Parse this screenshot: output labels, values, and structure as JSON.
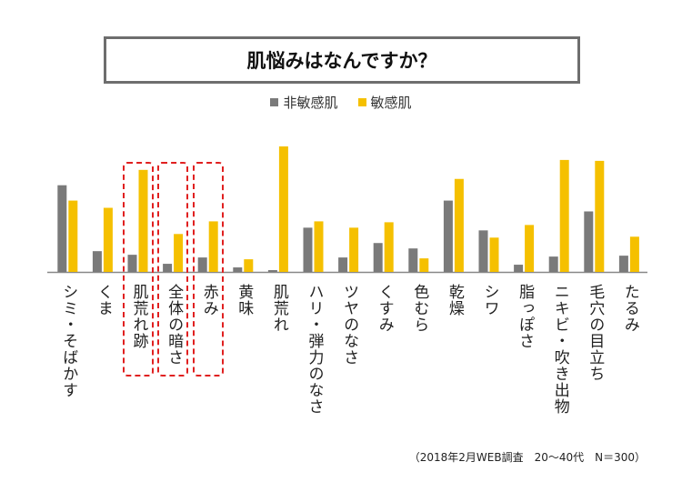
{
  "chart_data": {
    "type": "bar",
    "title": "肌悩みはなんですか？",
    "legend": [
      "非敏感肌",
      "敏感肌"
    ],
    "legend_position": "top",
    "categories": [
      "シミ・そばかす",
      "くま",
      "肌荒れ跡",
      "全体の暗さ",
      "赤み",
      "黄味",
      "肌荒れ",
      "ハリ・弾力のなさ",
      "ツヤのなさ",
      "くすみ",
      "色むら",
      "乾燥",
      "シワ",
      "脂っぽさ",
      "ニキビ・吹き出物",
      "毛穴の目立ち",
      "たるみ"
    ],
    "series": [
      {
        "name": "非敏感肌",
        "color": "#7a7a7a",
        "values": [
          96,
          23,
          19,
          9,
          16,
          5,
          2,
          49,
          16,
          32,
          26,
          79,
          46,
          8,
          17,
          67,
          18
        ]
      },
      {
        "name": "敏感肌",
        "color": "#f5c000",
        "values": [
          79,
          71,
          113,
          42,
          56,
          14,
          139,
          56,
          49,
          55,
          15,
          103,
          38,
          52,
          124,
          123,
          39
        ]
      }
    ],
    "ylim": [
      0,
      140
    ],
    "grid": false,
    "highlighted_categories": [
      "肌荒れ跡",
      "全体の暗さ",
      "赤み"
    ],
    "highlight_color": "#e02020"
  },
  "footnote": "（2018年2月WEB調査　20〜40代　N＝300）"
}
